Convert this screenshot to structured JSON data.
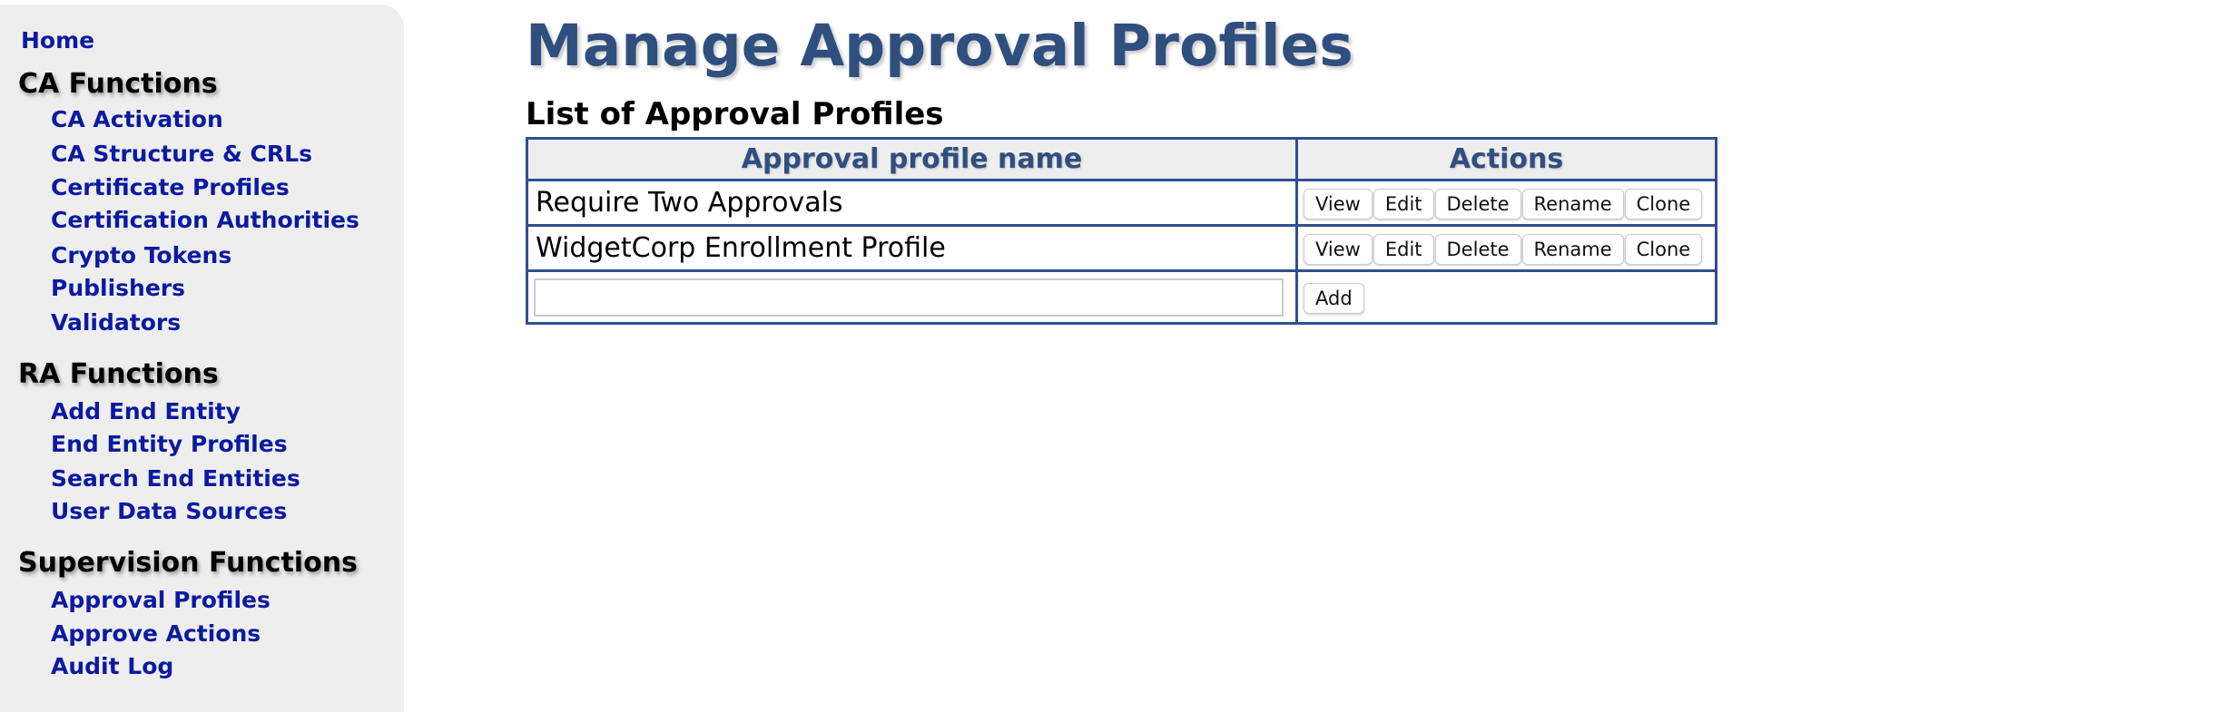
{
  "sidebar": {
    "home": "Home",
    "sections": [
      {
        "title": "CA Functions",
        "items": [
          "CA Activation",
          "CA Structure & CRLs",
          "Certificate Profiles",
          "Certification Authorities",
          "Crypto Tokens",
          "Publishers",
          "Validators"
        ]
      },
      {
        "title": "RA Functions",
        "items": [
          "Add End Entity",
          "End Entity Profiles",
          "Search End Entities",
          "User Data Sources"
        ]
      },
      {
        "title": "Supervision Functions",
        "items": [
          "Approval Profiles",
          "Approve Actions",
          "Audit Log"
        ]
      }
    ]
  },
  "main": {
    "title": "Manage Approval Profiles",
    "subtitle": "List of Approval Profiles",
    "columns": [
      "Approval profile name",
      "Actions"
    ],
    "rows": [
      {
        "name": "Require Two Approvals"
      },
      {
        "name": "WidgetCorp Enrollment Profile"
      }
    ],
    "actions": [
      "View",
      "Edit",
      "Delete",
      "Rename",
      "Clone"
    ],
    "new_profile_value": "",
    "add_label": "Add"
  }
}
